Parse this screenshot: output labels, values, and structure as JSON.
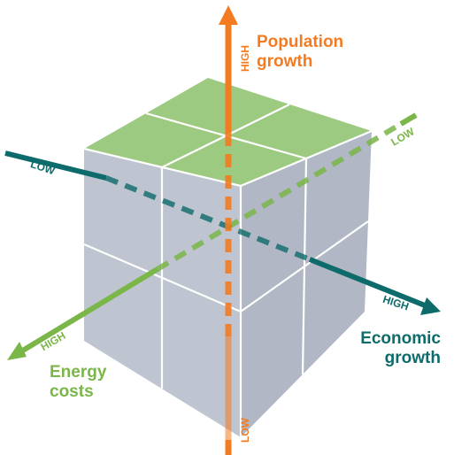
{
  "axes": {
    "population": {
      "title_line1": "Population",
      "title_line2": "growth",
      "high_label": "HIGH",
      "low_label": "LOW",
      "color": "#f47b20"
    },
    "economic": {
      "title_line1": "Economic",
      "title_line2": "growth",
      "high_label": "HIGH",
      "low_label": "LOW",
      "color": "#0e6b6b"
    },
    "energy": {
      "title_line1": "Energy",
      "title_line2": "costs",
      "high_label": "HIGH",
      "low_label": "LOW",
      "color": "#7ab648"
    }
  },
  "cube": {
    "top_color": "#98c77a",
    "front_color": "#b9bfcc",
    "side_color": "#aab1bf",
    "grid_line_color": "#ffffff"
  }
}
